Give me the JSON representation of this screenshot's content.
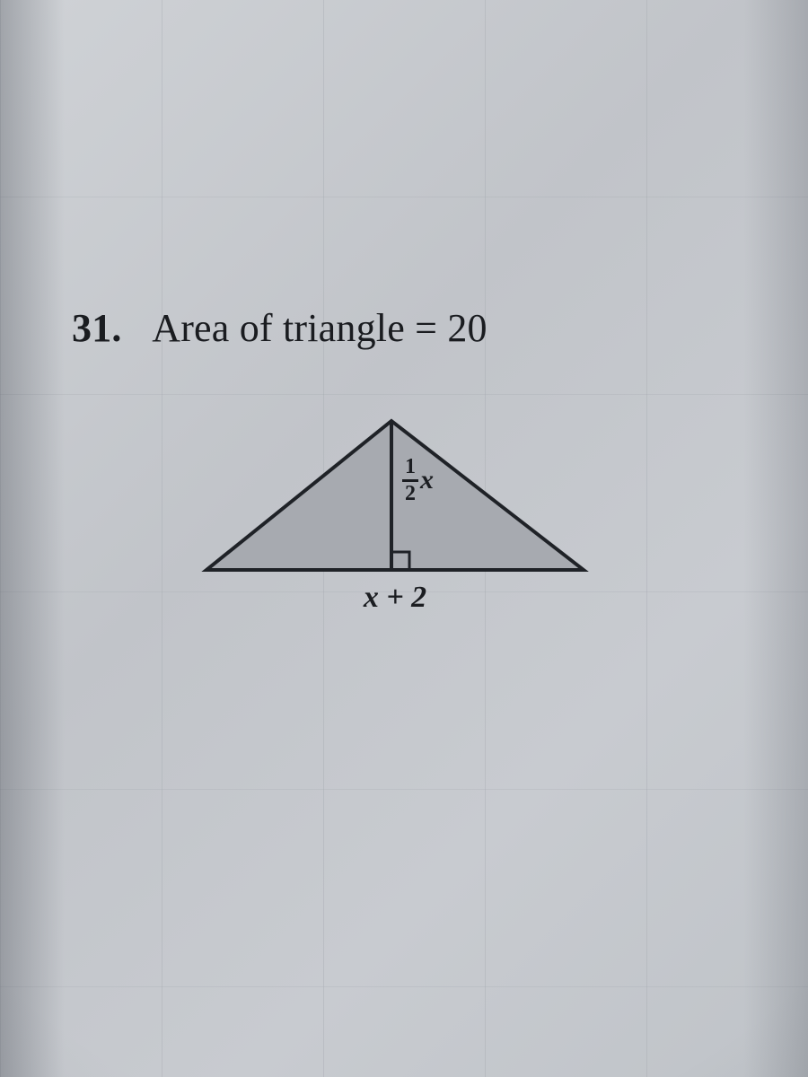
{
  "problem": {
    "number": "31.",
    "statement": "Area of triangle = 20"
  },
  "triangle": {
    "type": "triangle-with-altitude",
    "base_label_html": "x + 2",
    "height_label_numerator": "1",
    "height_label_denominator": "2",
    "height_label_variable": "x",
    "fill_color": "#a7aab0",
    "stroke_color": "#1f2227",
    "stroke_width": 4,
    "background_color": "#c6c9ce",
    "right_angle_box_size": 20,
    "vertices": {
      "A": [
        30,
        196
      ],
      "B": [
        450,
        196
      ],
      "C": [
        236,
        30
      ]
    },
    "altitude_foot": [
      236,
      196
    ]
  },
  "text_color": "#1a1c20",
  "title_fontsize": 44,
  "label_fontsize": 34
}
